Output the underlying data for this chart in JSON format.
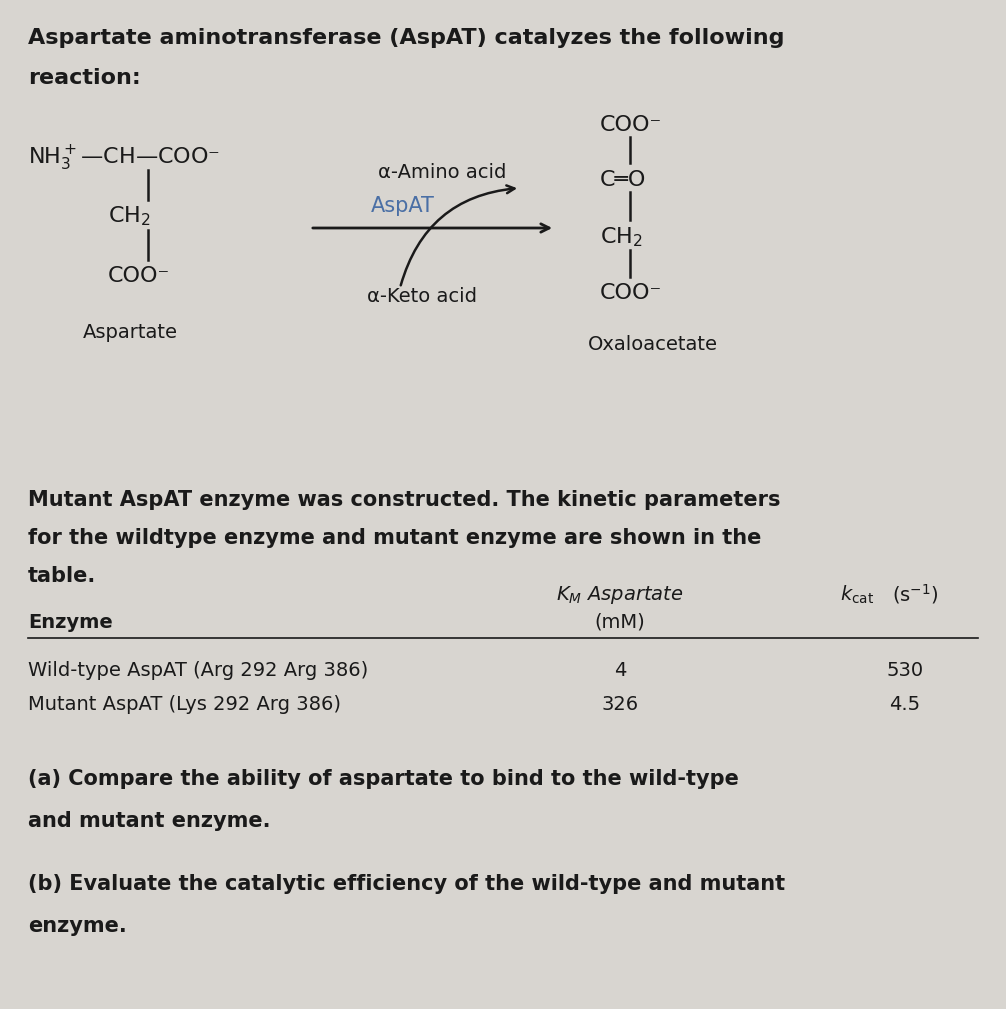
{
  "bg_color": "#d8d5d0",
  "text_color": "#1a1a1a",
  "aspat_color": "#4a6fa5",
  "title_line1": "Aspartate aminotransferase (AspAT) catalyzes the following",
  "title_line2": "reaction:",
  "para2_line1": "Mutant AspAT enzyme was constructed. The kinetic parameters",
  "para2_line2": "for the wildtype enzyme and mutant enzyme are shown in the",
  "para2_line3": "table.",
  "aspartate_label": "Aspartate",
  "oxaloacetate_label": "Oxaloacetate",
  "aspat_label": "AspAT",
  "alpha_amino": "α-Amino acid",
  "alpha_keto": "α-Keto acid",
  "col1_header": "Enzyme",
  "col2_header1": "$K_M$ Aspartate",
  "col2_header2": "(mM)",
  "col3_header1": "$k_\\mathrm{cat}$",
  "col3_header2": "(s$^{-1}$)",
  "row1_col1": "Wild-type AspAT (Arg 292 Arg 386)",
  "row1_col2": "4",
  "row1_col3": "530",
  "row2_col1": "Mutant AspAT (Lys 292 Arg 386)",
  "row2_col2": "326",
  "row2_col3": "4.5",
  "qa1": "(a) Compare the ability of aspartate to bind to the wild-type",
  "qa2": "and mutant enzyme.",
  "qb1": "(b) Evaluate the catalytic efficiency of the wild-type and mutant",
  "qb2": "enzyme.",
  "fs_title": 16,
  "fs_body": 15,
  "fs_chem": 14,
  "fs_label": 13,
  "fs_table": 14
}
